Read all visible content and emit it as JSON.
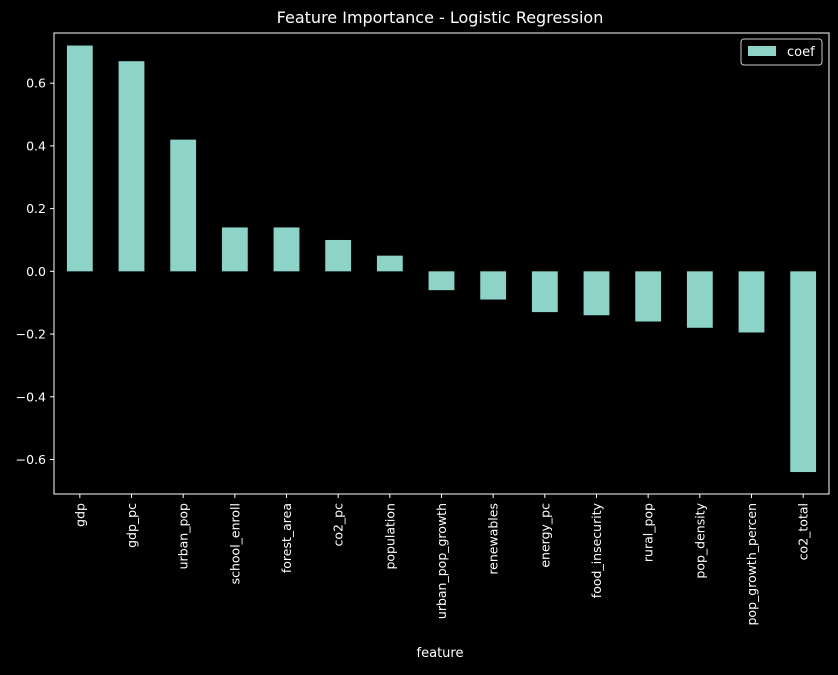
{
  "colors": {
    "background": "#000000",
    "bar": "#8dd3c7",
    "axis": "#ffffff",
    "text": "#ffffff"
  },
  "chart_data": {
    "type": "bar",
    "title": "Feature Importance - Logistic Regression",
    "xlabel": "feature",
    "ylabel": "",
    "categories": [
      "gdp",
      "gdp_pc",
      "urban_pop",
      "school_enroll",
      "forest_area",
      "co2_pc",
      "population",
      "urban_pop_growth",
      "renewables",
      "energy_pc",
      "food_insecurity",
      "rural_pop",
      "pop_density",
      "pop_growth_percen",
      "co2_total"
    ],
    "series": [
      {
        "name": "coef",
        "values": [
          0.72,
          0.67,
          0.42,
          0.14,
          0.14,
          0.1,
          0.05,
          -0.06,
          -0.09,
          -0.13,
          -0.14,
          -0.16,
          -0.18,
          -0.195,
          -0.64
        ]
      }
    ],
    "ylim": [
      -0.71,
      0.76
    ],
    "yticks": [
      -0.6,
      -0.4,
      -0.2,
      0.0,
      0.2,
      0.4,
      0.6
    ],
    "ytick_labels": [
      "−0.6",
      "−0.4",
      "−0.2",
      "0.0",
      "0.2",
      "0.4",
      "0.6"
    ],
    "legend": {
      "position": "top-right",
      "entries": [
        "coef"
      ]
    },
    "grid": false
  }
}
